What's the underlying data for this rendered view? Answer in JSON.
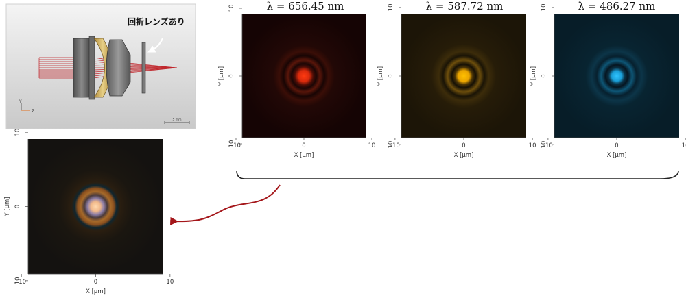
{
  "optical_system": {
    "annotation": "回折レンズあり",
    "scale_label": "5 mm",
    "axis_y": "Y",
    "axis_z": "Z"
  },
  "colors": {
    "ray": "#c0272d",
    "arrow": "#a4161a",
    "red_psf": "#ff3a10",
    "yellow_psf": "#ffb000",
    "blue_psf": "#1eb4ff",
    "white_psf_core": "#ffd2a6",
    "white_psf_ring": "#8a7aa6"
  },
  "psf_panels": [
    {
      "id": "red",
      "title": "λ = 656.45 nm",
      "xlabel": "X [μm]",
      "ylabel": "Y [μm]",
      "xticks": [
        "-10",
        "0",
        "10"
      ],
      "yticks": [
        "10",
        "0",
        "10"
      ],
      "wavelength_nm": 656.45
    },
    {
      "id": "yellow",
      "title": "λ = 587.72 nm",
      "xlabel": "X [μm]",
      "ylabel": "Y [μm]",
      "xticks": [
        "-10",
        "0",
        "10"
      ],
      "yticks": [
        "10",
        "0",
        "10"
      ],
      "wavelength_nm": 587.72
    },
    {
      "id": "blue",
      "title": "λ = 486.27 nm",
      "xlabel": "X [μm]",
      "ylabel": "Y [μm]",
      "xticks": [
        "-10",
        "0",
        "10"
      ],
      "yticks": [
        "10",
        "0",
        "10"
      ],
      "wavelength_nm": 486.27
    }
  ],
  "combined_panel": {
    "id": "white",
    "title": "",
    "xlabel": "X [μm]",
    "ylabel": "Y [μm]",
    "xticks": [
      "-10",
      "0",
      "10"
    ],
    "yticks": [
      "10",
      "0",
      "10"
    ]
  }
}
